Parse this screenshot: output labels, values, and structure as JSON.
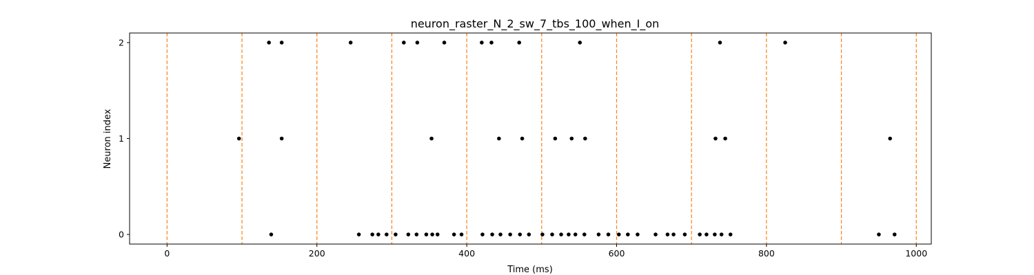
{
  "chart_data": {
    "type": "scatter",
    "title": "neuron_raster_N_2_sw_7_tbs_100_when_I_on",
    "xlabel": "Time (ms)",
    "ylabel": "Neuron index",
    "xlim": [
      -50,
      1020
    ],
    "ylim": [
      -0.1,
      2.1
    ],
    "xticks": [
      0,
      200,
      400,
      600,
      800,
      1000
    ],
    "yticks": [
      0,
      1,
      2
    ],
    "grid": false,
    "marker_color": "#000000",
    "vline_color": "#ff7f0e",
    "vlines": [
      0,
      100,
      200,
      300,
      400,
      500,
      600,
      700,
      800,
      900,
      1000
    ],
    "series": [
      {
        "neuron": 2,
        "times": [
          136,
          153,
          245,
          316,
          334,
          370,
          420,
          433,
          470,
          551,
          738,
          825
        ]
      },
      {
        "neuron": 1,
        "times": [
          96,
          153,
          353,
          443,
          474,
          518,
          540,
          558,
          732,
          745,
          965
        ]
      },
      {
        "neuron": 0,
        "times": [
          139,
          256,
          274,
          282,
          293,
          305,
          322,
          333,
          346,
          354,
          361,
          383,
          393,
          421,
          434,
          445,
          458,
          471,
          483,
          501,
          514,
          526,
          536,
          545,
          557,
          576,
          589,
          603,
          615,
          628,
          652,
          668,
          676,
          691,
          711,
          720,
          731,
          740,
          752,
          950,
          971
        ]
      }
    ]
  }
}
